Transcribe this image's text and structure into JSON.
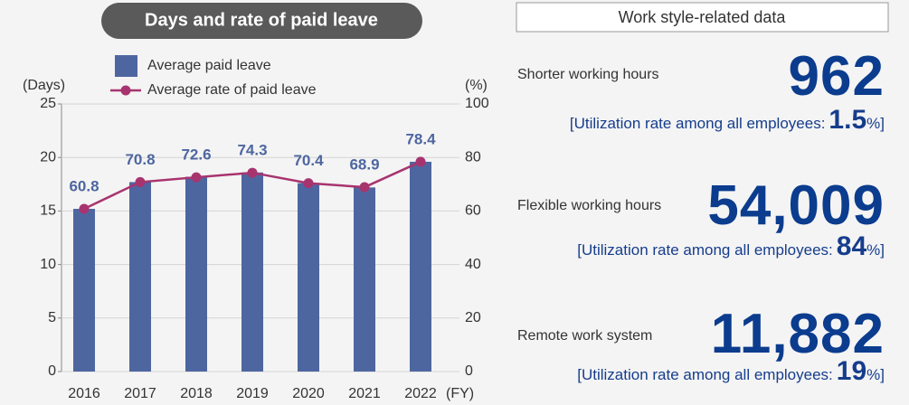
{
  "chart_data": {
    "type": "bar-line",
    "title": "Days and rate of paid leave",
    "y_label": "(Days)",
    "y2_label": "(%)",
    "x_label": "(FY)",
    "categories": [
      "2016",
      "2017",
      "2018",
      "2019",
      "2020",
      "2021",
      "2022"
    ],
    "series": [
      {
        "name": "Average paid leave",
        "type": "bar",
        "color": "#4e66a0",
        "axis": "y",
        "values": [
          15.2,
          17.7,
          18.2,
          18.6,
          17.6,
          17.2,
          19.6
        ]
      },
      {
        "name": "Average rate of paid leave",
        "type": "line",
        "color": "#a8346f",
        "axis": "y2",
        "values": [
          60.8,
          70.8,
          72.6,
          74.3,
          70.4,
          68.9,
          78.4
        ]
      }
    ],
    "ylim": [
      0,
      25
    ],
    "yticks": [
      0,
      5,
      10,
      15,
      20,
      25
    ],
    "y2lim": [
      0,
      100
    ],
    "y2ticks": [
      0,
      20,
      40,
      60,
      80,
      100
    ],
    "grid": true
  },
  "work_style": {
    "title": "Work style-related data",
    "items": [
      {
        "label": "Shorter working hours",
        "value": "962",
        "note": "[Utilization rate among all employees:",
        "rate": "1.5",
        "unit": "%",
        "close": "]"
      },
      {
        "label": "Flexible working hours",
        "value": "54,009",
        "note": "[Utilization rate among all employees:",
        "rate": "84",
        "unit": "%",
        "close": "]"
      },
      {
        "label": "Remote work system",
        "value": "11,882",
        "note": "[Utilization rate among all employees:",
        "rate": "19",
        "unit": "%",
        "close": "]"
      }
    ]
  }
}
